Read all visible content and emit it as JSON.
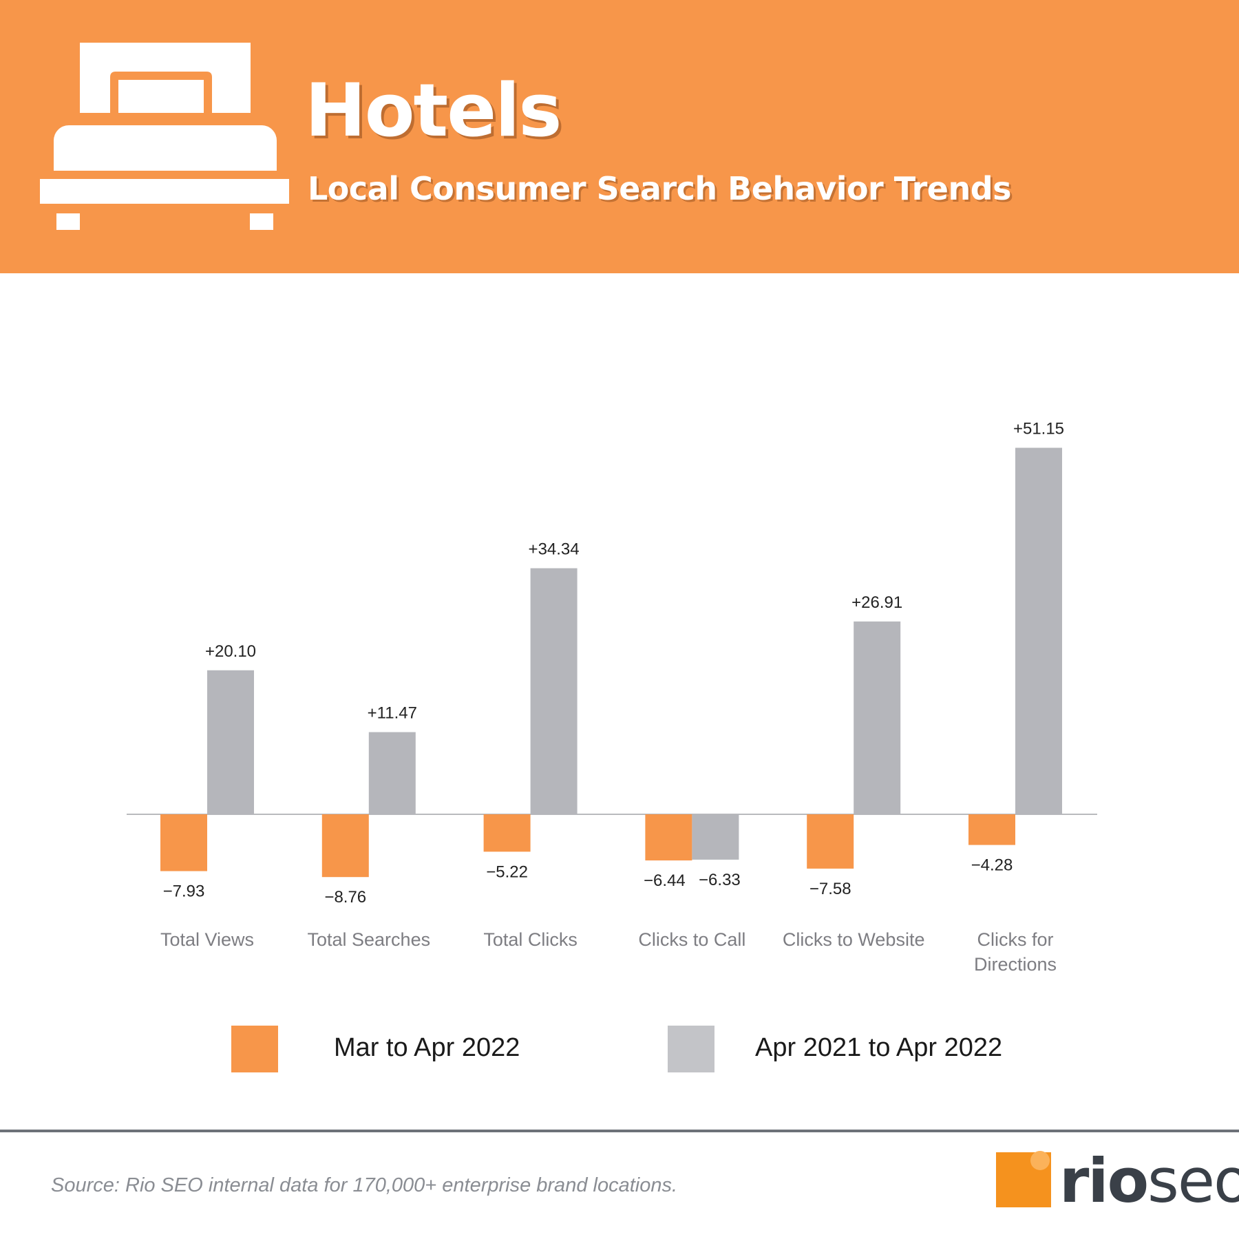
{
  "header": {
    "title": "Hotels",
    "subtitle": "Local Consumer Search Behavior Trends"
  },
  "colors": {
    "banner": "#f7964a",
    "series_mar_apr": "#f7964a",
    "series_yoy": "#b5b6bb",
    "legend_yoy_swatch": "#c3c4c8",
    "divider": "#6d7178"
  },
  "icons": {
    "header_icon": "bed-icon",
    "logo": "rio-seo-logo"
  },
  "legend": {
    "items": [
      {
        "label": "Mar to Apr 2022",
        "color": "#f7964a"
      },
      {
        "label": "Apr 2021 to Apr 2022",
        "color": "#c3c4c8"
      }
    ]
  },
  "footer": {
    "source": "Source: Rio SEO internal data for 170,000+ enterprise brand locations.",
    "logo_part1": "rio",
    "logo_part2": "seo"
  },
  "chart_data": {
    "type": "bar",
    "title": "",
    "xlabel": "",
    "ylabel": "",
    "categories": [
      [
        "Total Views"
      ],
      [
        "Total Searches"
      ],
      [
        "Total Clicks"
      ],
      [
        "Clicks to Call"
      ],
      [
        "Clicks to Website"
      ],
      [
        "Clicks for",
        "Directions"
      ]
    ],
    "series": [
      {
        "name": "Mar to Apr 2022",
        "values": [
          -7.93,
          -8.76,
          -5.22,
          -6.44,
          -7.58,
          -4.28
        ],
        "labels": [
          "−7.93",
          "−8.76",
          "−5.22",
          "−6.44",
          "−7.58",
          "−4.28"
        ]
      },
      {
        "name": "Apr 2021 to Apr 2022",
        "values": [
          20.1,
          11.47,
          34.34,
          -6.33,
          26.91,
          51.15
        ],
        "labels": [
          "+20.10",
          "+11.47",
          "+34.34",
          "−6.33",
          "+26.91",
          "+51.15"
        ]
      }
    ],
    "ylim": [
      -10,
      55
    ],
    "grid": false,
    "legend_position": "bottom"
  }
}
